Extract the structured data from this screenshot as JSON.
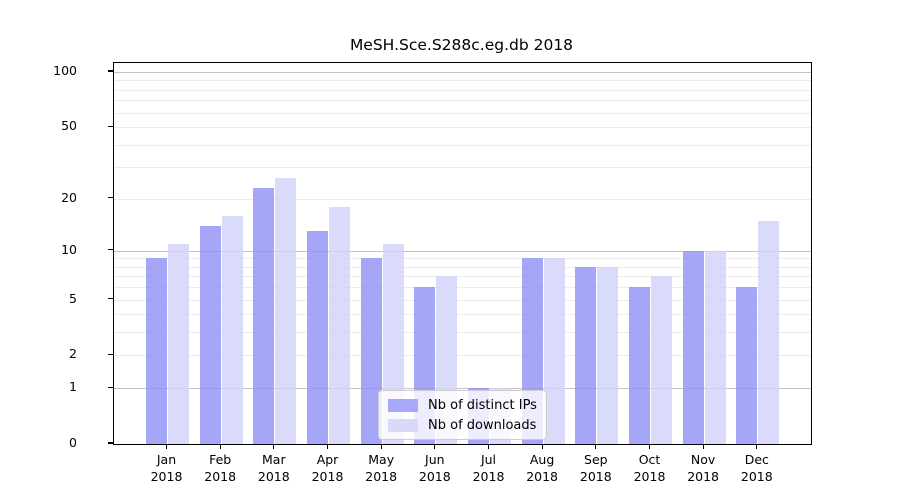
{
  "title": "MeSH.Sce.S288c.eg.db 2018",
  "chart_data": {
    "type": "bar",
    "scale": "log1p",
    "title": "MeSH.Sce.S288c.eg.db 2018",
    "xlabel": "",
    "ylabel": "",
    "ylim": [
      0,
      100
    ],
    "grid": true,
    "legend_position": "lower center",
    "categories": [
      "Jan",
      "Feb",
      "Mar",
      "Apr",
      "May",
      "Jun",
      "Jul",
      "Aug",
      "Sep",
      "Oct",
      "Nov",
      "Dec"
    ],
    "year": "2018",
    "series": [
      {
        "name": "Nb of distinct IPs",
        "color": "#9292f6",
        "effective_color": "#a8a8f8",
        "values": [
          9,
          14,
          23,
          13,
          9,
          6,
          1,
          9,
          8,
          6,
          10,
          6
        ]
      },
      {
        "name": "Nb of downloads",
        "color": "#d2d2f9",
        "effective_color": "#d9d9fa",
        "values": [
          11,
          16,
          26,
          18,
          11,
          7,
          1,
          9,
          8,
          7,
          10,
          15
        ]
      }
    ],
    "y_ticks": [
      0,
      1,
      2,
      5,
      10,
      20,
      50,
      100
    ],
    "gridlines_major": [
      1,
      10,
      100
    ],
    "gridlines_minor": [
      2,
      3,
      4,
      5,
      6,
      7,
      8,
      9,
      20,
      30,
      40,
      50,
      60,
      70,
      80,
      90
    ],
    "axis_color": "#000000",
    "major_grid_color": "#c3c3c3",
    "minor_grid_color": "#ececec"
  },
  "legend": {
    "item_1": "Nb of distinct IPs",
    "item_2": "Nb of downloads"
  }
}
